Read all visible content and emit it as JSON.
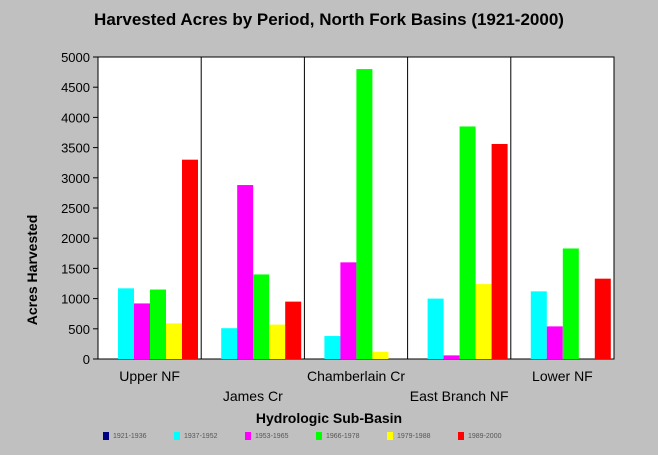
{
  "chart_data": {
    "type": "bar",
    "title": "Harvested Acres by Period, North Fork Basins (1921-2000)",
    "xlabel": "Hydrologic Sub-Basin",
    "ylabel": "Acres Harvested",
    "ylim": [
      0,
      5000
    ],
    "yticks": [
      0,
      500,
      1000,
      1500,
      2000,
      2500,
      3000,
      3500,
      4000,
      4500,
      5000
    ],
    "grid": "vertical category separators",
    "legend_position": "bottom",
    "categories": [
      "Upper NF",
      "James Cr",
      "Chamberlain Cr",
      "East Branch NF",
      "Lower NF"
    ],
    "series": [
      {
        "name": "1921-1936",
        "color": "#000080",
        "values": [
          0,
          0,
          0,
          0,
          0
        ]
      },
      {
        "name": "1937-1952",
        "color": "#00ffff",
        "values": [
          1170,
          510,
          380,
          1000,
          1120
        ]
      },
      {
        "name": "1953-1965",
        "color": "#ff00ff",
        "values": [
          920,
          2880,
          1600,
          60,
          540
        ]
      },
      {
        "name": "1966-1978",
        "color": "#00ff00",
        "values": [
          1150,
          1400,
          4800,
          3850,
          1830
        ]
      },
      {
        "name": "1979-1988",
        "color": "#ffff00",
        "values": [
          590,
          570,
          120,
          1240,
          0
        ]
      },
      {
        "name": "1989-2000",
        "color": "#ff0000",
        "values": [
          3300,
          950,
          0,
          3560,
          1330
        ]
      }
    ]
  }
}
